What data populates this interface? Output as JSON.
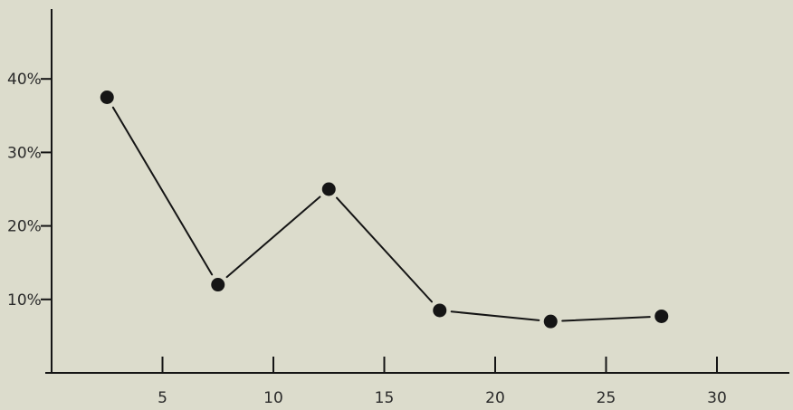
{
  "chart_data": {
    "type": "line",
    "title": "",
    "xlabel": "",
    "ylabel": "",
    "x": [
      2.5,
      7.5,
      12.5,
      17.5,
      22.5,
      27.5
    ],
    "series": [
      {
        "values": [
          37.5,
          12,
          25,
          8.5,
          7,
          7.7
        ]
      }
    ],
    "xlim": [
      0,
      36
    ],
    "ylim": [
      0,
      50
    ],
    "xticks": [
      {
        "value": 5,
        "label": "5"
      },
      {
        "value": 10,
        "label": "10"
      },
      {
        "value": 15,
        "label": "15"
      },
      {
        "value": 20,
        "label": "20"
      },
      {
        "value": 25,
        "label": "25"
      },
      {
        "value": 30,
        "label": "30"
      }
    ],
    "yticks": [
      {
        "value": 10,
        "label": "10%"
      },
      {
        "value": 20,
        "label": "20%"
      },
      {
        "value": 30,
        "label": "30%"
      },
      {
        "value": 40,
        "label": "40%"
      }
    ],
    "grid": false,
    "legend": "none",
    "colors": {
      "background": "#dcdccc",
      "ink": "#151515"
    }
  }
}
